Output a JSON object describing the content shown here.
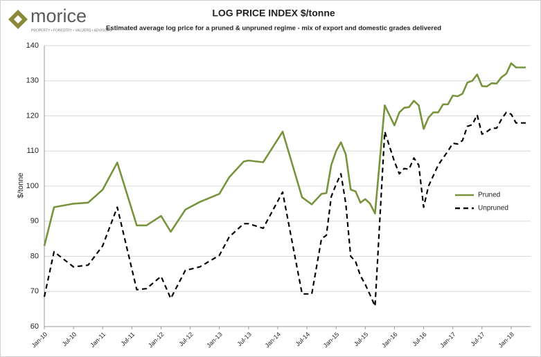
{
  "logo": {
    "name": "morice",
    "tagline": "PROPERTY • FORESTRY • VALUERS • ADVISORS"
  },
  "chart_data": {
    "type": "line",
    "title": "LOG PRICE INDEX $/tonne",
    "subtitle": "Estimated average log price for a pruned & unpruned regime  - mix of export and domestic grades delivered",
    "y_label": "$/tonne",
    "x": [
      "2010-01",
      "2010-03",
      "2010-07",
      "2010-10",
      "2011-01",
      "2011-04",
      "2011-08",
      "2011-10",
      "2012-01",
      "2012-03",
      "2012-06",
      "2012-09",
      "2013-01",
      "2013-03",
      "2013-06",
      "2013-07",
      "2013-10",
      "2014-02",
      "2014-06",
      "2014-08",
      "2014-10",
      "2014-11",
      "2014-12",
      "2015-01",
      "2015-02",
      "2015-03",
      "2015-04",
      "2015-05",
      "2015-06",
      "2015-07",
      "2015-08",
      "2015-09",
      "2015-11",
      "2016-01",
      "2016-02",
      "2016-03",
      "2016-04",
      "2016-05",
      "2016-06",
      "2016-07",
      "2016-08",
      "2016-09",
      "2016-10",
      "2016-11",
      "2016-12",
      "2017-01",
      "2017-02",
      "2017-03",
      "2017-04",
      "2017-05",
      "2017-06",
      "2017-07",
      "2017-08",
      "2017-09",
      "2017-10",
      "2017-11",
      "2017-12",
      "2018-01",
      "2018-02",
      "2018-03",
      "2018-04"
    ],
    "series": [
      {
        "name": "Pruned",
        "color": "#77933c",
        "line_style": "solid",
        "values": [
          83,
          94,
          95,
          95.3,
          99,
          106.7,
          88.8,
          88.8,
          91.5,
          87,
          93.3,
          95.5,
          97.8,
          102.5,
          107,
          107.3,
          106.8,
          115.5,
          96.8,
          94.8,
          97.8,
          98,
          106,
          110,
          112.5,
          109,
          99,
          98.5,
          95.3,
          96.3,
          95,
          92.2,
          123,
          117.3,
          121,
          122.3,
          122.5,
          124.3,
          123,
          116.3,
          119.5,
          121,
          121,
          123.3,
          123.3,
          125.8,
          125.6,
          126.3,
          129.5,
          130,
          131.8,
          128.5,
          128.4,
          129.3,
          129.2,
          131,
          132,
          135,
          133.8,
          133.8,
          133.8
        ]
      },
      {
        "name": "Unpruned",
        "color": "#000000",
        "line_style": "dashed",
        "values": [
          68.5,
          81.3,
          77,
          77.5,
          83,
          94,
          70.5,
          70.8,
          74.3,
          68,
          76,
          77,
          80.3,
          85.5,
          89.3,
          89.3,
          88,
          98.3,
          69.3,
          69.3,
          85,
          86,
          97,
          100.5,
          103.5,
          95,
          80,
          78.5,
          74.5,
          72,
          69,
          65.8,
          115.5,
          107,
          103.5,
          105,
          104.8,
          108,
          106,
          94,
          100,
          103,
          106,
          108,
          110,
          112.2,
          112,
          113,
          117,
          117.5,
          120.3,
          114.8,
          115.5,
          116.5,
          116.5,
          119,
          121,
          120.5,
          118,
          118,
          118
        ]
      }
    ],
    "xlim": [
      "2010-01",
      "2018-05"
    ],
    "xticks": [
      {
        "value": "2010-01",
        "label": "Jan-10"
      },
      {
        "value": "2010-07",
        "label": "Jul-10"
      },
      {
        "value": "2011-01",
        "label": "Jan-11"
      },
      {
        "value": "2011-07",
        "label": "Jul-11"
      },
      {
        "value": "2012-01",
        "label": "Jan-12"
      },
      {
        "value": "2012-07",
        "label": "Jul-12"
      },
      {
        "value": "2013-01",
        "label": "Jan-13"
      },
      {
        "value": "2013-07",
        "label": "Jul-13"
      },
      {
        "value": "2014-01",
        "label": "Jan-14"
      },
      {
        "value": "2014-07",
        "label": "Jul-14"
      },
      {
        "value": "2015-01",
        "label": "Jan-15"
      },
      {
        "value": "2015-07",
        "label": "Jul-15"
      },
      {
        "value": "2016-01",
        "label": "Jan-16"
      },
      {
        "value": "2016-07",
        "label": "Jul-16"
      },
      {
        "value": "2017-01",
        "label": "Jan-17"
      },
      {
        "value": "2017-07",
        "label": "Jul-17"
      },
      {
        "value": "2018-01",
        "label": "Jan-18"
      }
    ],
    "ylim": [
      60,
      140
    ],
    "yticks": [
      60,
      70,
      80,
      90,
      100,
      110,
      120,
      130,
      140
    ],
    "grid": true,
    "legend": "right"
  }
}
